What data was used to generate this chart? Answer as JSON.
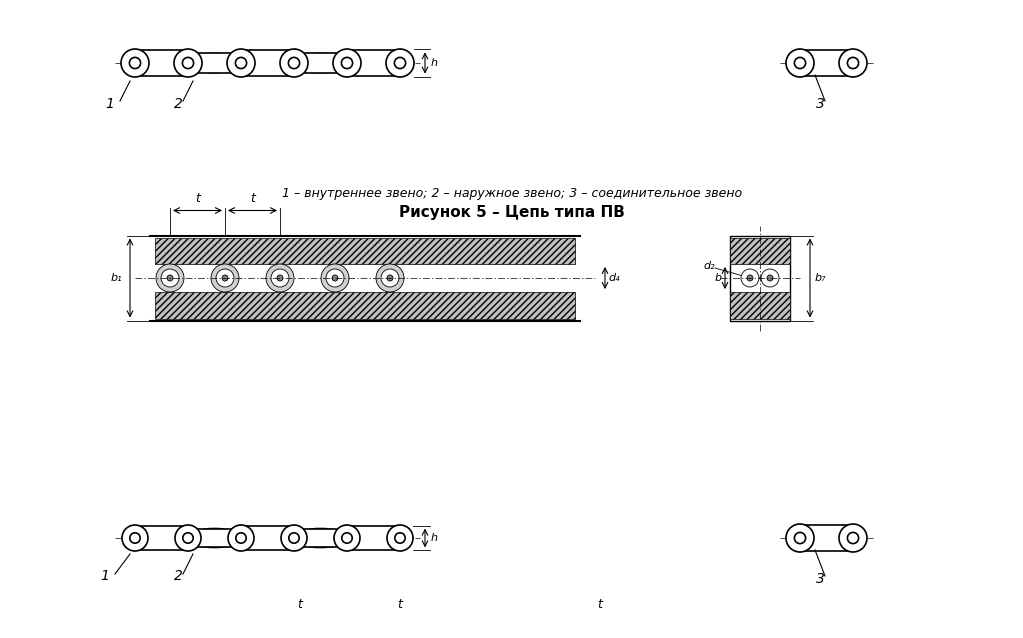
{
  "bg_color": "#ffffff",
  "line_color": "#000000",
  "gray_color": "#888888",
  "light_gray": "#cccccc",
  "caption_line1": "1 – внутреннее звено; 2 – наружное звено; 3 – соединительное звено",
  "caption_line2": "Рисунок 5 – Цепь типа ПВ",
  "label_1": "1",
  "label_2": "2",
  "label_3": "3",
  "label_h": "h",
  "label_t1": "t",
  "label_t2": "t",
  "label_b1": "b₁",
  "label_b": "b",
  "label_b7": "b₇",
  "label_d2": "d₂",
  "label_d4": "d₄"
}
